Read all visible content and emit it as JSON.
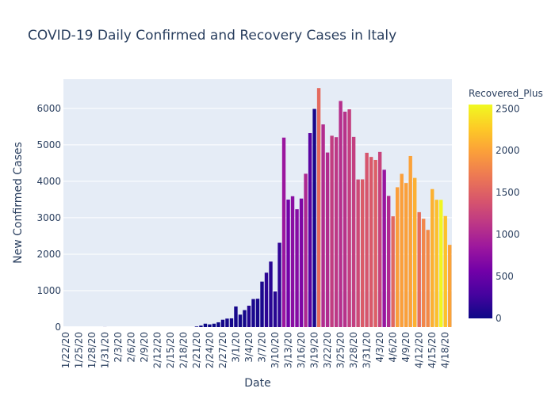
{
  "chart_data": {
    "type": "bar",
    "title": "COVID-19 Daily Confirmed and Recovery Cases in Italy",
    "xlabel": "Date",
    "ylabel": "New Confirmed Cases",
    "ylim": [
      0,
      6800
    ],
    "y_ticks": [
      0,
      1000,
      2000,
      3000,
      4000,
      5000,
      6000
    ],
    "x_tick_labels": [
      "1/22/20",
      "1/25/20",
      "1/28/20",
      "1/31/20",
      "2/3/20",
      "2/6/20",
      "2/9/20",
      "2/12/20",
      "2/15/20",
      "2/18/20",
      "2/21/20",
      "2/24/20",
      "2/27/20",
      "3/1/20",
      "3/4/20",
      "3/7/20",
      "3/10/20",
      "3/13/20",
      "3/16/20",
      "3/19/20",
      "3/22/20",
      "3/25/20",
      "3/28/20",
      "3/31/20",
      "4/3/20",
      "4/6/20",
      "4/9/20",
      "4/12/20",
      "4/15/20",
      "4/18/20"
    ],
    "x_tick_every": 3,
    "grid": true,
    "colorbar": {
      "title": "Recovered_Plus",
      "range": [
        0,
        2550
      ],
      "ticks": [
        0,
        500,
        1000,
        1500,
        2000,
        2500
      ],
      "scale": [
        "#0d0887",
        "#46039f",
        "#7201a8",
        "#9c179e",
        "#bd3786",
        "#d8576b",
        "#ed7953",
        "#fb9f3a",
        "#fdca26",
        "#f0f921"
      ]
    },
    "start_date": "1/22/20",
    "values": [
      0,
      0,
      0,
      0,
      0,
      0,
      0,
      0,
      0,
      2,
      0,
      0,
      0,
      0,
      0,
      0,
      0,
      0,
      0,
      0,
      0,
      0,
      0,
      0,
      0,
      0,
      0,
      0,
      0,
      0,
      17,
      42,
      93,
      74,
      93,
      131,
      202,
      233,
      240,
      566,
      342,
      466,
      587,
      769,
      778,
      1247,
      1492,
      1797,
      977,
      2313,
      5198,
      3497,
      3590,
      3233,
      3526,
      4207,
      5322,
      5986,
      6557,
      5560,
      4789,
      5249,
      5210,
      6203,
      5909,
      5974,
      5217,
      4050,
      4053,
      4782,
      4668,
      4585,
      4805,
      4316,
      3599,
      3039,
      3836,
      4204,
      3951,
      4694,
      4092,
      3153,
      2972,
      2667,
      3786,
      3493,
      3491,
      3047,
      2256
    ],
    "recovered": [
      0,
      0,
      0,
      0,
      0,
      0,
      0,
      0,
      0,
      0,
      0,
      0,
      0,
      0,
      0,
      0,
      0,
      0,
      0,
      0,
      0,
      0,
      0,
      0,
      0,
      0,
      0,
      0,
      0,
      0,
      0,
      1,
      2,
      0,
      1,
      0,
      40,
      44,
      42,
      43,
      34,
      38,
      116,
      65,
      60,
      67,
      157,
      140,
      135,
      177,
      840,
      568,
      728,
      700,
      640,
      1000,
      415,
      55,
      1575,
      1036,
      1027,
      1186,
      1138,
      1062,
      1084,
      1200,
      1200,
      1300,
      1450,
      1400,
      1431,
      1480,
      1238,
      819,
      1022,
      1555,
      1979,
      1985,
      1993,
      2000,
      2094,
      1600,
      1800,
      1822,
      2100,
      2200,
      2531,
      2210,
      2000
    ]
  }
}
